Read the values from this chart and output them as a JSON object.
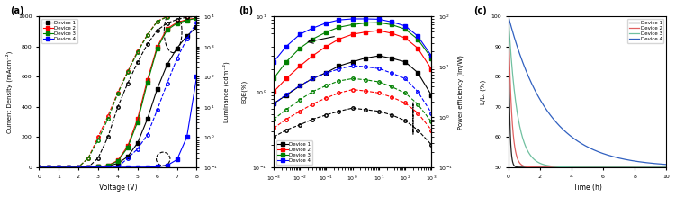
{
  "panel_a": {
    "title": "(a)",
    "xlabel": "Voltage (V)",
    "ylabel_left": "Current Density (mAcm⁻²)",
    "ylabel_right": "Luminance (cdm⁻²)",
    "xlim": [
      0,
      8
    ],
    "ylim_left": [
      0,
      1000
    ],
    "ylim_right": [
      0.1,
      10000.0
    ],
    "devices": [
      "Device 1",
      "Device 2",
      "Device 3",
      "Device 4"
    ],
    "colors": [
      "black",
      "red",
      "green",
      "blue"
    ],
    "voltage": [
      0,
      0.5,
      1.0,
      1.5,
      2.0,
      2.5,
      3.0,
      3.5,
      4.0,
      4.5,
      5.0,
      5.5,
      6.0,
      6.5,
      7.0,
      7.5,
      8.0
    ],
    "current_density": {
      "dev1": [
        0,
        0,
        0,
        0,
        0.5,
        1.5,
        3,
        8,
        25,
        70,
        160,
        320,
        520,
        680,
        790,
        870,
        930
      ],
      "dev2": [
        0,
        0,
        0,
        0,
        0.2,
        0.8,
        3,
        12,
        45,
        140,
        320,
        580,
        800,
        920,
        960,
        980,
        990
      ],
      "dev3": [
        0,
        0,
        0,
        0,
        0.2,
        0.6,
        2.5,
        10,
        40,
        130,
        300,
        560,
        790,
        910,
        955,
        975,
        988
      ],
      "dev4": [
        0,
        0,
        0,
        0,
        0,
        0,
        0,
        0.1,
        0.2,
        0.3,
        0.5,
        1.0,
        3,
        12,
        50,
        200,
        600
      ]
    },
    "luminance": {
      "dev1": [
        0.1,
        0.1,
        0.1,
        0.1,
        0.1,
        0.1,
        0.2,
        1.0,
        10,
        60,
        300,
        1200,
        3500,
        6000,
        8000,
        9500,
        10000
      ],
      "dev2": [
        0.1,
        0.1,
        0.1,
        0.1,
        0.1,
        0.2,
        1.0,
        5,
        30,
        150,
        700,
        2500,
        7000,
        10000,
        12000,
        13000,
        13500
      ],
      "dev3": [
        0.1,
        0.1,
        0.1,
        0.1,
        0.1,
        0.2,
        0.8,
        4,
        28,
        140,
        650,
        2400,
        6800,
        9800,
        11800,
        12800,
        13200
      ],
      "dev4": [
        0.1,
        0.1,
        0.1,
        0.1,
        0.1,
        0.1,
        0.1,
        0.1,
        0.1,
        0.2,
        0.4,
        1.2,
        8,
        60,
        400,
        1800,
        6500
      ]
    }
  },
  "panel_b": {
    "title": "(b)",
    "xlabel": "Luminance (cdm⁻²)",
    "ylabel_left": "EQE(%)",
    "ylabel_right": "Power efficiency (lm/W)",
    "xlim": [
      0.001,
      1000
    ],
    "ylim_left": [
      0.1,
      10
    ],
    "ylim_right": [
      0.1,
      100
    ],
    "devices": [
      "Device 1",
      "Device 2",
      "Device 3",
      "Device 4"
    ],
    "colors": [
      "black",
      "red",
      "green",
      "blue"
    ],
    "lum_x": [
      0.001,
      0.003,
      0.01,
      0.03,
      0.1,
      0.3,
      1,
      3,
      10,
      30,
      100,
      300,
      1000
    ],
    "eqe": {
      "dev1": [
        0.7,
        0.9,
        1.2,
        1.5,
        1.8,
        2.2,
        2.5,
        2.8,
        3.0,
        2.8,
        2.5,
        1.8,
        0.9
      ],
      "dev2": [
        1.0,
        1.5,
        2.2,
        3.0,
        4.0,
        5.0,
        5.8,
        6.2,
        6.5,
        6.0,
        5.2,
        3.8,
        2.0
      ],
      "dev3": [
        1.5,
        2.5,
        3.8,
        5.0,
        6.2,
        7.2,
        7.8,
        8.2,
        8.3,
        7.8,
        6.8,
        5.0,
        2.8
      ],
      "dev4": [
        2.5,
        4.0,
        5.8,
        7.0,
        8.2,
        9.0,
        9.3,
        9.3,
        9.2,
        8.5,
        7.5,
        5.5,
        3.0
      ]
    },
    "power_eff": {
      "dev1": [
        0.4,
        0.55,
        0.7,
        0.9,
        1.1,
        1.3,
        1.5,
        1.4,
        1.3,
        1.1,
        0.85,
        0.55,
        0.28
      ],
      "dev2": [
        0.6,
        0.9,
        1.3,
        1.8,
        2.4,
        3.0,
        3.5,
        3.3,
        3.0,
        2.5,
        1.9,
        1.2,
        0.55
      ],
      "dev3": [
        0.9,
        1.4,
        2.2,
        3.2,
        4.2,
        5.2,
        5.8,
        5.5,
        5.0,
        4.0,
        3.0,
        1.8,
        0.8
      ],
      "dev4": [
        1.8,
        2.8,
        4.2,
        5.8,
        7.5,
        9.0,
        10.5,
        10.0,
        9.2,
        7.5,
        5.8,
        3.2,
        1.2
      ]
    }
  },
  "panel_c": {
    "title": "(c)",
    "xlabel": "Time (h)",
    "ylabel": "L/L₀ (%)",
    "xlim": [
      0,
      10
    ],
    "ylim": [
      50,
      100
    ],
    "devices": [
      "Device 1",
      "Device 2",
      "Device 3",
      "Device 4"
    ],
    "colors": [
      "#222222",
      "#e06060",
      "#70c0a0",
      "#3060c0"
    ],
    "decay_tau": [
      0.08,
      0.2,
      0.55,
      2.5
    ]
  }
}
